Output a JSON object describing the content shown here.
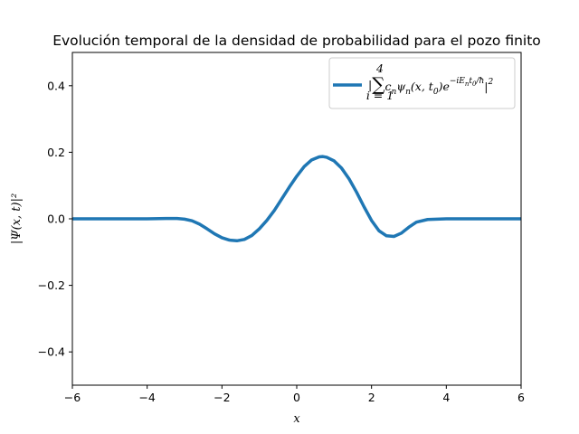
{
  "chart_data": {
    "type": "line",
    "title": "Evolución temporal de la densidad de probabilidad para el pozo finito",
    "xlabel": "x",
    "ylabel": "|Ψ(x, t)|²",
    "xlim": [
      -6,
      6
    ],
    "ylim": [
      -0.5,
      0.5
    ],
    "xticks": [
      -6,
      -4,
      -2,
      0,
      2,
      4,
      6
    ],
    "xtick_labels": [
      "−6",
      "−4",
      "−2",
      "0",
      "2",
      "4",
      "6"
    ],
    "yticks": [
      -0.4,
      -0.2,
      0.0,
      0.2,
      0.4
    ],
    "ytick_labels": [
      "−0.4",
      "−0.2",
      "0.0",
      "0.2",
      "0.4"
    ],
    "legend_position": "upper right",
    "grid": false,
    "series": [
      {
        "name": "|∑_{i=1}^{4} c_n ψ_n(x, t_0) e^{−iE_n t_0/ħ}|²",
        "color": "#1f77b4",
        "x": [
          -6,
          -5,
          -4,
          -3.5,
          -3.2,
          -3.0,
          -2.8,
          -2.6,
          -2.4,
          -2.2,
          -2.0,
          -1.8,
          -1.6,
          -1.4,
          -1.2,
          -1.0,
          -0.8,
          -0.6,
          -0.4,
          -0.2,
          0.0,
          0.2,
          0.4,
          0.6,
          0.7,
          0.8,
          1.0,
          1.2,
          1.4,
          1.6,
          1.8,
          2.0,
          2.2,
          2.4,
          2.6,
          2.8,
          3.0,
          3.2,
          3.5,
          4.0,
          5.0,
          6.0
        ],
        "y": [
          0.0,
          0.0,
          0.0,
          0.001,
          0.001,
          -0.001,
          -0.006,
          -0.016,
          -0.03,
          -0.045,
          -0.057,
          -0.064,
          -0.066,
          -0.062,
          -0.05,
          -0.03,
          -0.005,
          0.025,
          0.06,
          0.095,
          0.128,
          0.157,
          0.177,
          0.186,
          0.187,
          0.185,
          0.174,
          0.152,
          0.12,
          0.08,
          0.036,
          -0.005,
          -0.036,
          -0.051,
          -0.053,
          -0.043,
          -0.025,
          -0.01,
          -0.002,
          0.0,
          0.0,
          0.0
        ]
      }
    ]
  }
}
